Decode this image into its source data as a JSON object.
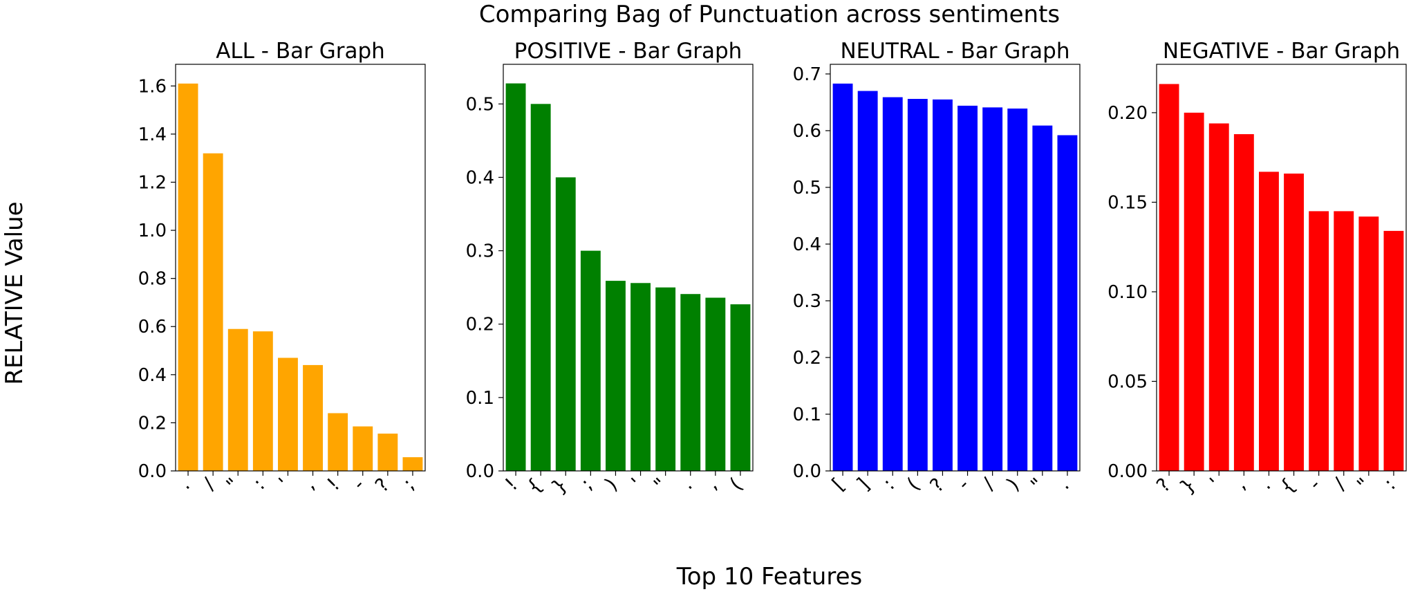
{
  "figure": {
    "suptitle": "Comparing Bag of Punctuation across sentiments",
    "xlabel": "Top 10 Features",
    "ylabel": "RELATIVE Value"
  },
  "chart_data": [
    {
      "type": "bar",
      "title": "ALL - Bar Graph",
      "color": "#FFA500",
      "categories": [
        ".",
        "/",
        "\"",
        ":",
        "'",
        ",",
        "!",
        "-",
        "?",
        ";"
      ],
      "values": [
        1.61,
        1.32,
        0.59,
        0.58,
        0.47,
        0.44,
        0.24,
        0.185,
        0.155,
        0.057
      ],
      "ylim": [
        0,
        1.69
      ],
      "yticks": [
        0.0,
        0.2,
        0.4,
        0.6,
        0.8,
        1.0,
        1.2,
        1.4,
        1.6
      ],
      "ytick_decimals": 1
    },
    {
      "type": "bar",
      "title": "POSITIVE - Bar Graph",
      "color": "#008000",
      "categories": [
        "!",
        "{",
        "}",
        ";",
        ")",
        "'",
        "\"",
        ".",
        ",",
        "("
      ],
      "values": [
        0.528,
        0.5,
        0.4,
        0.3,
        0.259,
        0.256,
        0.25,
        0.241,
        0.236,
        0.227
      ],
      "ylim": [
        0,
        0.554
      ],
      "yticks": [
        0.0,
        0.1,
        0.2,
        0.3,
        0.4,
        0.5
      ],
      "ytick_decimals": 1
    },
    {
      "type": "bar",
      "title": "NEUTRAL - Bar Graph",
      "color": "#0000FF",
      "categories": [
        "[",
        "]",
        ":",
        "(",
        "?",
        "-",
        "/",
        ")",
        "\"",
        "."
      ],
      "values": [
        0.683,
        0.67,
        0.659,
        0.656,
        0.655,
        0.644,
        0.641,
        0.639,
        0.609,
        0.592
      ],
      "ylim": [
        0,
        0.717
      ],
      "yticks": [
        0.0,
        0.1,
        0.2,
        0.3,
        0.4,
        0.5,
        0.6,
        0.7
      ],
      "ytick_decimals": 1
    },
    {
      "type": "bar",
      "title": "NEGATIVE - Bar Graph",
      "color": "#FF0000",
      "categories": [
        "?",
        "}",
        "'",
        ",",
        ".",
        "{",
        "-",
        "/",
        "\"",
        ":"
      ],
      "values": [
        0.216,
        0.2,
        0.194,
        0.188,
        0.167,
        0.166,
        0.145,
        0.145,
        0.142,
        0.134
      ],
      "ylim": [
        0,
        0.227
      ],
      "yticks": [
        0.0,
        0.05,
        0.1,
        0.15,
        0.2
      ],
      "ytick_decimals": 2
    }
  ]
}
